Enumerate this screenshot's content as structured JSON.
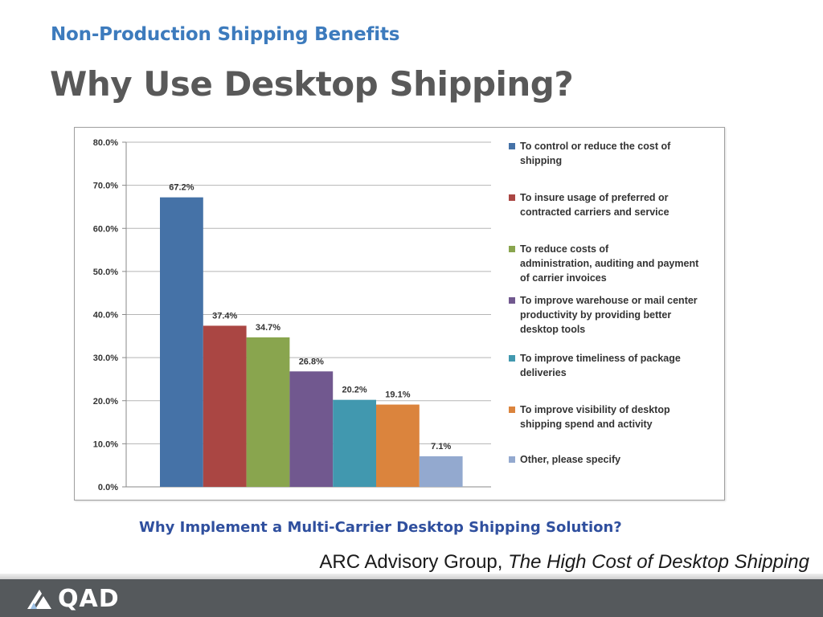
{
  "header": {
    "subtitle": "Non-Production Shipping Benefits",
    "title": "Why Use Desktop Shipping?"
  },
  "chart_caption": "Why Implement a Multi-Carrier Desktop Shipping Solution?",
  "source": {
    "author": "ARC Advisory Group,",
    "work": "The High Cost of Desktop Shipping"
  },
  "footer": {
    "logo_text": "QAD"
  },
  "chart_data": {
    "type": "bar",
    "categories": [
      "To control or reduce the cost of shipping",
      "To insure usage of preferred or contracted carriers and service",
      "To reduce costs of administration, auditing and payment of carrier invoices",
      "To improve warehouse or mail center productivity by providing better desktop tools",
      "To improve timeliness of package deliveries",
      "To improve visibility of desktop shipping spend and activity",
      "Other, please specify"
    ],
    "values": [
      67.2,
      37.4,
      34.7,
      26.8,
      20.2,
      19.1,
      7.1
    ],
    "value_labels": [
      "67.2%",
      "37.4%",
      "34.7%",
      "26.8%",
      "20.2%",
      "19.1%",
      "7.1%"
    ],
    "colors": [
      "#4572a7",
      "#aa4643",
      "#89a54e",
      "#71588f",
      "#4198af",
      "#db843d",
      "#93a9cf"
    ],
    "ylim": [
      0,
      80
    ],
    "yticks": [
      "0.0%",
      "10.0%",
      "20.0%",
      "30.0%",
      "40.0%",
      "50.0%",
      "60.0%",
      "70.0%",
      "80.0%"
    ],
    "grid": true,
    "legend_position": "right",
    "legend": [
      {
        "line1": "To control or reduce the cost of",
        "line2": "shipping"
      },
      {
        "line1": "To insure usage of preferred or",
        "line2": "contracted carriers and service"
      },
      {
        "line1": "To reduce costs of",
        "line2": "administration, auditing and payment",
        "line3": "of carrier invoices"
      },
      {
        "line1": "To improve warehouse or mail center",
        "line2": "productivity by providing better",
        "line3": "desktop tools"
      },
      {
        "line1": "To improve timeliness of package",
        "line2": "deliveries"
      },
      {
        "line1": "To improve visibility of desktop",
        "line2": "shipping spend and activity"
      },
      {
        "line1": "Other, please specify"
      }
    ]
  }
}
